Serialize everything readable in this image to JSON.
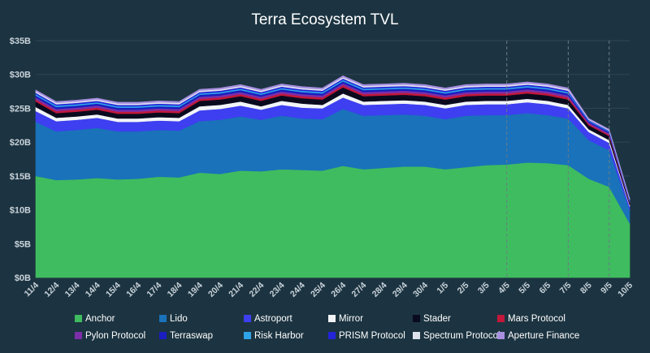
{
  "chart_data": {
    "type": "area",
    "stacked": true,
    "title": "Terra Ecosystem TVL",
    "xlabel": "",
    "ylabel": "",
    "ylim": [
      0,
      35
    ],
    "y_ticks": [
      0,
      5,
      10,
      15,
      20,
      25,
      30,
      35
    ],
    "y_tick_labels": [
      "$0B",
      "$5B",
      "$10B",
      "$15B",
      "$20B",
      "$25B",
      "$30B",
      "$35B"
    ],
    "grid": true,
    "legend_position": "bottom",
    "event_markers": [
      "4/5",
      "7/5",
      "9/5"
    ],
    "categories": [
      "11/4",
      "12/4",
      "13/4",
      "14/4",
      "15/4",
      "16/4",
      "17/4",
      "18/4",
      "19/4",
      "20/4",
      "21/4",
      "22/4",
      "23/4",
      "24/4",
      "25/4",
      "26/4",
      "27/4",
      "28/4",
      "29/4",
      "30/4",
      "1/5",
      "2/5",
      "3/5",
      "4/5",
      "5/5",
      "6/5",
      "7/5",
      "8/5",
      "9/5",
      "10/5"
    ],
    "series": [
      {
        "name": "Anchor",
        "color": "#3fbc5f",
        "values": [
          15.0,
          14.4,
          14.5,
          14.7,
          14.5,
          14.6,
          14.9,
          14.8,
          15.5,
          15.3,
          15.8,
          15.7,
          16.0,
          15.9,
          15.8,
          16.5,
          16.0,
          16.2,
          16.4,
          16.4,
          16.0,
          16.3,
          16.6,
          16.7,
          17.0,
          16.9,
          16.6,
          14.6,
          13.4,
          8.0
        ]
      },
      {
        "name": "Lido",
        "color": "#1a72ba",
        "values": [
          8.0,
          7.2,
          7.3,
          7.4,
          7.1,
          7.0,
          6.9,
          6.9,
          7.6,
          8.0,
          8.0,
          7.6,
          7.9,
          7.6,
          7.6,
          8.4,
          7.9,
          7.8,
          7.7,
          7.5,
          7.4,
          7.6,
          7.4,
          7.3,
          7.3,
          7.1,
          6.9,
          5.7,
          5.4,
          2.0
        ]
      },
      {
        "name": "Astroport",
        "color": "#3e3ff0",
        "values": [
          1.6,
          1.5,
          1.5,
          1.5,
          1.4,
          1.4,
          1.4,
          1.4,
          1.6,
          1.6,
          1.6,
          1.5,
          1.6,
          1.6,
          1.6,
          1.7,
          1.6,
          1.6,
          1.6,
          1.6,
          1.6,
          1.6,
          1.6,
          1.6,
          1.6,
          1.6,
          1.5,
          1.2,
          1.1,
          0.5
        ]
      },
      {
        "name": "Mirror",
        "color": "#f2f5f8",
        "values": [
          0.6,
          0.5,
          0.5,
          0.5,
          0.5,
          0.5,
          0.5,
          0.5,
          0.6,
          0.6,
          0.6,
          0.5,
          0.6,
          0.6,
          0.5,
          0.6,
          0.5,
          0.5,
          0.5,
          0.5,
          0.5,
          0.5,
          0.5,
          0.5,
          0.5,
          0.5,
          0.5,
          0.4,
          0.4,
          0.2
        ]
      },
      {
        "name": "Stader",
        "color": "#0a0a1e",
        "values": [
          0.8,
          0.7,
          0.7,
          0.7,
          0.7,
          0.7,
          0.7,
          0.7,
          0.8,
          0.8,
          0.8,
          0.8,
          0.8,
          0.8,
          0.8,
          0.9,
          0.8,
          0.8,
          0.8,
          0.8,
          0.8,
          0.8,
          0.8,
          0.8,
          0.8,
          0.8,
          0.8,
          0.6,
          0.6,
          0.3
        ]
      },
      {
        "name": "Mars Protocol",
        "color": "#c2183a",
        "values": [
          0.3,
          0.3,
          0.3,
          0.3,
          0.3,
          0.3,
          0.3,
          0.3,
          0.3,
          0.3,
          0.3,
          0.3,
          0.3,
          0.3,
          0.3,
          0.3,
          0.3,
          0.3,
          0.3,
          0.3,
          0.3,
          0.3,
          0.3,
          0.3,
          0.3,
          0.3,
          0.3,
          0.2,
          0.2,
          0.1
        ]
      },
      {
        "name": "Pylon Protocol",
        "color": "#7c2fa8",
        "values": [
          0.3,
          0.3,
          0.3,
          0.3,
          0.3,
          0.3,
          0.3,
          0.3,
          0.3,
          0.3,
          0.3,
          0.3,
          0.3,
          0.3,
          0.3,
          0.3,
          0.3,
          0.3,
          0.3,
          0.3,
          0.3,
          0.3,
          0.3,
          0.3,
          0.3,
          0.3,
          0.3,
          0.2,
          0.2,
          0.1
        ]
      },
      {
        "name": "Terraswap",
        "color": "#1a1fbf",
        "values": [
          0.3,
          0.3,
          0.3,
          0.3,
          0.3,
          0.3,
          0.3,
          0.3,
          0.3,
          0.3,
          0.3,
          0.3,
          0.3,
          0.3,
          0.3,
          0.3,
          0.3,
          0.3,
          0.3,
          0.3,
          0.3,
          0.3,
          0.3,
          0.3,
          0.3,
          0.3,
          0.3,
          0.2,
          0.2,
          0.1
        ]
      },
      {
        "name": "Risk Harbor",
        "color": "#2ea3e8",
        "values": [
          0.2,
          0.2,
          0.2,
          0.2,
          0.2,
          0.2,
          0.2,
          0.2,
          0.2,
          0.2,
          0.2,
          0.2,
          0.2,
          0.2,
          0.2,
          0.2,
          0.2,
          0.2,
          0.2,
          0.2,
          0.2,
          0.2,
          0.2,
          0.2,
          0.2,
          0.2,
          0.2,
          0.1,
          0.1,
          0.1
        ]
      },
      {
        "name": "PRISM Protocol",
        "color": "#2424d8",
        "values": [
          0.2,
          0.2,
          0.2,
          0.2,
          0.2,
          0.2,
          0.2,
          0.2,
          0.2,
          0.2,
          0.2,
          0.2,
          0.2,
          0.2,
          0.2,
          0.2,
          0.2,
          0.2,
          0.2,
          0.2,
          0.2,
          0.2,
          0.2,
          0.2,
          0.2,
          0.2,
          0.2,
          0.1,
          0.1,
          0.1
        ]
      },
      {
        "name": "Spectrum Protocol",
        "color": "#dfe3ee",
        "values": [
          0.2,
          0.2,
          0.2,
          0.2,
          0.2,
          0.2,
          0.2,
          0.2,
          0.2,
          0.2,
          0.2,
          0.2,
          0.2,
          0.2,
          0.2,
          0.2,
          0.2,
          0.2,
          0.2,
          0.2,
          0.2,
          0.2,
          0.2,
          0.2,
          0.2,
          0.2,
          0.2,
          0.1,
          0.1,
          0.1
        ]
      },
      {
        "name": "Aperture Finance",
        "color": "#a88fe0",
        "values": [
          0.2,
          0.2,
          0.2,
          0.2,
          0.2,
          0.2,
          0.2,
          0.2,
          0.2,
          0.2,
          0.2,
          0.2,
          0.2,
          0.2,
          0.2,
          0.2,
          0.2,
          0.2,
          0.2,
          0.2,
          0.2,
          0.2,
          0.2,
          0.2,
          0.2,
          0.2,
          0.2,
          0.1,
          0.1,
          0.1
        ]
      }
    ]
  }
}
